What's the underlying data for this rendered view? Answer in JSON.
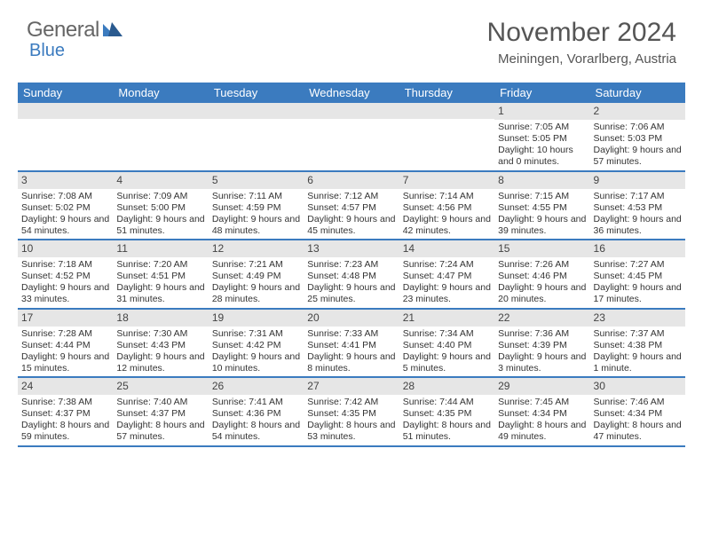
{
  "logo": {
    "text1": "General",
    "text2": "Blue"
  },
  "title": "November 2024",
  "location": "Meiningen, Vorarlberg, Austria",
  "colors": {
    "brand_blue": "#3b7bbf",
    "header_bg": "#3b7bbf",
    "gray_bar": "#e6e6e6",
    "text": "#333333",
    "title_text": "#555555"
  },
  "day_names": [
    "Sunday",
    "Monday",
    "Tuesday",
    "Wednesday",
    "Thursday",
    "Friday",
    "Saturday"
  ],
  "weeks": [
    [
      {
        "num": "",
        "sunrise": "",
        "sunset": "",
        "daylight": ""
      },
      {
        "num": "",
        "sunrise": "",
        "sunset": "",
        "daylight": ""
      },
      {
        "num": "",
        "sunrise": "",
        "sunset": "",
        "daylight": ""
      },
      {
        "num": "",
        "sunrise": "",
        "sunset": "",
        "daylight": ""
      },
      {
        "num": "",
        "sunrise": "",
        "sunset": "",
        "daylight": ""
      },
      {
        "num": "1",
        "sunrise": "Sunrise: 7:05 AM",
        "sunset": "Sunset: 5:05 PM",
        "daylight": "Daylight: 10 hours and 0 minutes."
      },
      {
        "num": "2",
        "sunrise": "Sunrise: 7:06 AM",
        "sunset": "Sunset: 5:03 PM",
        "daylight": "Daylight: 9 hours and 57 minutes."
      }
    ],
    [
      {
        "num": "3",
        "sunrise": "Sunrise: 7:08 AM",
        "sunset": "Sunset: 5:02 PM",
        "daylight": "Daylight: 9 hours and 54 minutes."
      },
      {
        "num": "4",
        "sunrise": "Sunrise: 7:09 AM",
        "sunset": "Sunset: 5:00 PM",
        "daylight": "Daylight: 9 hours and 51 minutes."
      },
      {
        "num": "5",
        "sunrise": "Sunrise: 7:11 AM",
        "sunset": "Sunset: 4:59 PM",
        "daylight": "Daylight: 9 hours and 48 minutes."
      },
      {
        "num": "6",
        "sunrise": "Sunrise: 7:12 AM",
        "sunset": "Sunset: 4:57 PM",
        "daylight": "Daylight: 9 hours and 45 minutes."
      },
      {
        "num": "7",
        "sunrise": "Sunrise: 7:14 AM",
        "sunset": "Sunset: 4:56 PM",
        "daylight": "Daylight: 9 hours and 42 minutes."
      },
      {
        "num": "8",
        "sunrise": "Sunrise: 7:15 AM",
        "sunset": "Sunset: 4:55 PM",
        "daylight": "Daylight: 9 hours and 39 minutes."
      },
      {
        "num": "9",
        "sunrise": "Sunrise: 7:17 AM",
        "sunset": "Sunset: 4:53 PM",
        "daylight": "Daylight: 9 hours and 36 minutes."
      }
    ],
    [
      {
        "num": "10",
        "sunrise": "Sunrise: 7:18 AM",
        "sunset": "Sunset: 4:52 PM",
        "daylight": "Daylight: 9 hours and 33 minutes."
      },
      {
        "num": "11",
        "sunrise": "Sunrise: 7:20 AM",
        "sunset": "Sunset: 4:51 PM",
        "daylight": "Daylight: 9 hours and 31 minutes."
      },
      {
        "num": "12",
        "sunrise": "Sunrise: 7:21 AM",
        "sunset": "Sunset: 4:49 PM",
        "daylight": "Daylight: 9 hours and 28 minutes."
      },
      {
        "num": "13",
        "sunrise": "Sunrise: 7:23 AM",
        "sunset": "Sunset: 4:48 PM",
        "daylight": "Daylight: 9 hours and 25 minutes."
      },
      {
        "num": "14",
        "sunrise": "Sunrise: 7:24 AM",
        "sunset": "Sunset: 4:47 PM",
        "daylight": "Daylight: 9 hours and 23 minutes."
      },
      {
        "num": "15",
        "sunrise": "Sunrise: 7:26 AM",
        "sunset": "Sunset: 4:46 PM",
        "daylight": "Daylight: 9 hours and 20 minutes."
      },
      {
        "num": "16",
        "sunrise": "Sunrise: 7:27 AM",
        "sunset": "Sunset: 4:45 PM",
        "daylight": "Daylight: 9 hours and 17 minutes."
      }
    ],
    [
      {
        "num": "17",
        "sunrise": "Sunrise: 7:28 AM",
        "sunset": "Sunset: 4:44 PM",
        "daylight": "Daylight: 9 hours and 15 minutes."
      },
      {
        "num": "18",
        "sunrise": "Sunrise: 7:30 AM",
        "sunset": "Sunset: 4:43 PM",
        "daylight": "Daylight: 9 hours and 12 minutes."
      },
      {
        "num": "19",
        "sunrise": "Sunrise: 7:31 AM",
        "sunset": "Sunset: 4:42 PM",
        "daylight": "Daylight: 9 hours and 10 minutes."
      },
      {
        "num": "20",
        "sunrise": "Sunrise: 7:33 AM",
        "sunset": "Sunset: 4:41 PM",
        "daylight": "Daylight: 9 hours and 8 minutes."
      },
      {
        "num": "21",
        "sunrise": "Sunrise: 7:34 AM",
        "sunset": "Sunset: 4:40 PM",
        "daylight": "Daylight: 9 hours and 5 minutes."
      },
      {
        "num": "22",
        "sunrise": "Sunrise: 7:36 AM",
        "sunset": "Sunset: 4:39 PM",
        "daylight": "Daylight: 9 hours and 3 minutes."
      },
      {
        "num": "23",
        "sunrise": "Sunrise: 7:37 AM",
        "sunset": "Sunset: 4:38 PM",
        "daylight": "Daylight: 9 hours and 1 minute."
      }
    ],
    [
      {
        "num": "24",
        "sunrise": "Sunrise: 7:38 AM",
        "sunset": "Sunset: 4:37 PM",
        "daylight": "Daylight: 8 hours and 59 minutes."
      },
      {
        "num": "25",
        "sunrise": "Sunrise: 7:40 AM",
        "sunset": "Sunset: 4:37 PM",
        "daylight": "Daylight: 8 hours and 57 minutes."
      },
      {
        "num": "26",
        "sunrise": "Sunrise: 7:41 AM",
        "sunset": "Sunset: 4:36 PM",
        "daylight": "Daylight: 8 hours and 54 minutes."
      },
      {
        "num": "27",
        "sunrise": "Sunrise: 7:42 AM",
        "sunset": "Sunset: 4:35 PM",
        "daylight": "Daylight: 8 hours and 53 minutes."
      },
      {
        "num": "28",
        "sunrise": "Sunrise: 7:44 AM",
        "sunset": "Sunset: 4:35 PM",
        "daylight": "Daylight: 8 hours and 51 minutes."
      },
      {
        "num": "29",
        "sunrise": "Sunrise: 7:45 AM",
        "sunset": "Sunset: 4:34 PM",
        "daylight": "Daylight: 8 hours and 49 minutes."
      },
      {
        "num": "30",
        "sunrise": "Sunrise: 7:46 AM",
        "sunset": "Sunset: 4:34 PM",
        "daylight": "Daylight: 8 hours and 47 minutes."
      }
    ]
  ]
}
